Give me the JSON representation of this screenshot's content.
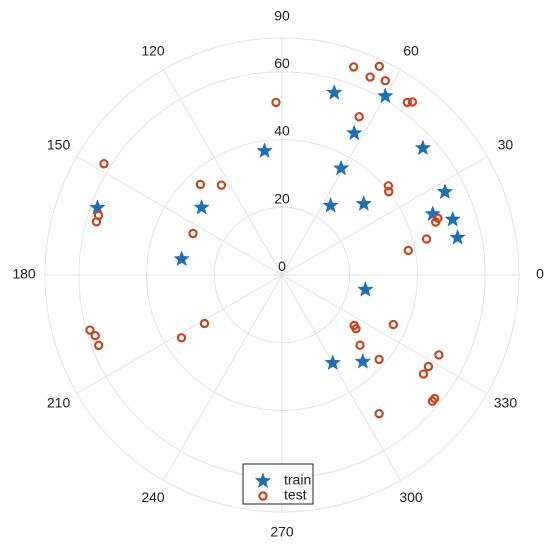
{
  "chart_data": {
    "type": "scatter",
    "coordinate_system": "polar",
    "title": "",
    "angle_unit": "degrees",
    "angle_ticks": [
      0,
      30,
      60,
      90,
      120,
      150,
      180,
      210,
      240,
      270,
      300,
      330
    ],
    "angle_tick_labels": [
      "0",
      "30",
      "60",
      "90",
      "120",
      "150",
      "180",
      "210",
      "240",
      "270",
      "300",
      "330"
    ],
    "r_ticks": [
      0,
      20,
      40,
      60
    ],
    "r_tick_labels": [
      "0",
      "20",
      "40",
      "60"
    ],
    "r_tick_label_angle": 90,
    "rlim": [
      0,
      70
    ],
    "grid": true,
    "legend_position": "bottom-center",
    "series": [
      {
        "name": "train",
        "marker": "star",
        "color": "#1f6fb4",
        "points": [
          {
            "theta": 42,
            "r": 56
          },
          {
            "theta": 60,
            "r": 61
          },
          {
            "theta": 74,
            "r": 56
          },
          {
            "theta": 98,
            "r": 37
          },
          {
            "theta": 140,
            "r": 31
          },
          {
            "theta": 160,
            "r": 58
          },
          {
            "theta": 171,
            "r": 30
          },
          {
            "theta": 61,
            "r": 36
          },
          {
            "theta": 55,
            "r": 25
          },
          {
            "theta": 63,
            "r": 47
          },
          {
            "theta": 41,
            "r": 32
          },
          {
            "theta": 27,
            "r": 54
          },
          {
            "theta": 18,
            "r": 53
          },
          {
            "theta": 22,
            "r": 48
          },
          {
            "theta": 12,
            "r": 53
          },
          {
            "theta": 350,
            "r": 25
          },
          {
            "theta": 313,
            "r": 35
          },
          {
            "theta": 300,
            "r": 30
          }
        ]
      },
      {
        "name": "test",
        "marker": "circle",
        "color": "#c8461f",
        "points": [
          {
            "theta": 65,
            "r": 68
          },
          {
            "theta": 62,
            "r": 65
          },
          {
            "theta": 66,
            "r": 64
          },
          {
            "theta": 71,
            "r": 65
          },
          {
            "theta": 53,
            "r": 64
          },
          {
            "theta": 54,
            "r": 63
          },
          {
            "theta": 92,
            "r": 51
          },
          {
            "theta": 64,
            "r": 52
          },
          {
            "theta": 124,
            "r": 32
          },
          {
            "theta": 132,
            "r": 36
          },
          {
            "theta": 148,
            "r": 62
          },
          {
            "theta": 162,
            "r": 57
          },
          {
            "theta": 164,
            "r": 57
          },
          {
            "theta": 155,
            "r": 29
          },
          {
            "theta": 40,
            "r": 41
          },
          {
            "theta": 38,
            "r": 40
          },
          {
            "theta": 20,
            "r": 49
          },
          {
            "theta": 19,
            "r": 48
          },
          {
            "theta": 14,
            "r": 44
          },
          {
            "theta": 11,
            "r": 38
          },
          {
            "theta": 196,
            "r": 59
          },
          {
            "theta": 198,
            "r": 58
          },
          {
            "theta": 201,
            "r": 58
          },
          {
            "theta": 212,
            "r": 35
          },
          {
            "theta": 212,
            "r": 27
          },
          {
            "theta": 324,
            "r": 27
          },
          {
            "theta": 325,
            "r": 26
          },
          {
            "theta": 318,
            "r": 31
          },
          {
            "theta": 336,
            "r": 36
          },
          {
            "theta": 319,
            "r": 38
          },
          {
            "theta": 333,
            "r": 52
          },
          {
            "theta": 328,
            "r": 51
          },
          {
            "theta": 325,
            "r": 51
          },
          {
            "theta": 320,
            "r": 58
          },
          {
            "theta": 321,
            "r": 58
          },
          {
            "theta": 305,
            "r": 50
          }
        ]
      }
    ]
  }
}
